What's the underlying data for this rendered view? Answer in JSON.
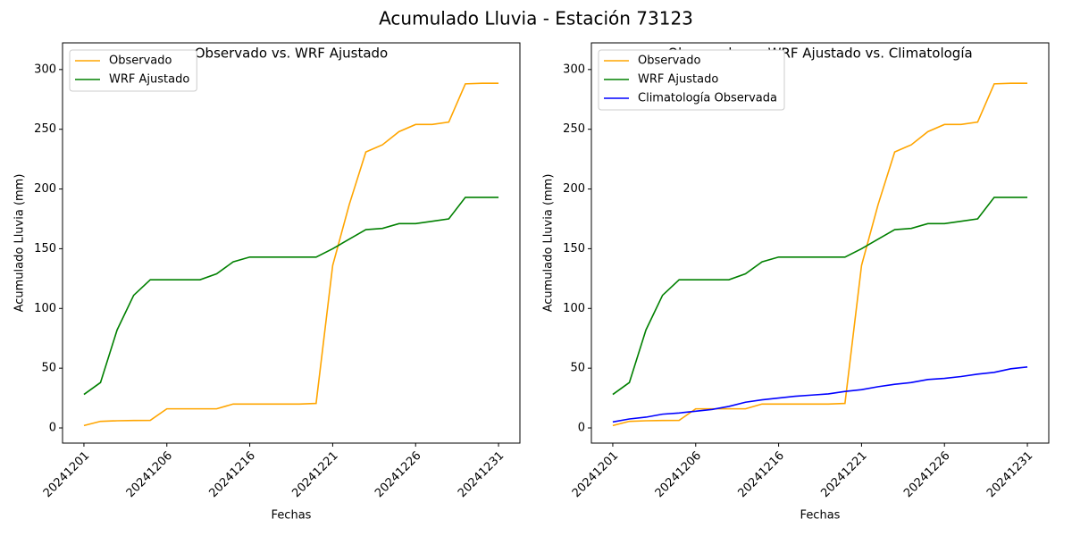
{
  "title": "Acumulado Lluvia - Estación 73123",
  "chart_data": [
    {
      "type": "line",
      "title": "Observado vs. WRF Ajustado",
      "x_label": "Fechas",
      "y_label": "Acumulado Lluvia (mm)",
      "categories": [
        "20241201",
        null,
        null,
        null,
        null,
        "20241206",
        null,
        null,
        null,
        null,
        "20241216",
        null,
        null,
        null,
        null,
        "20241221",
        null,
        null,
        null,
        null,
        "20241226",
        null,
        null,
        null,
        null,
        "20241231"
      ],
      "series": [
        {
          "name": "Observado",
          "color": "orange",
          "values": [
            2,
            5.5,
            6,
            6.2,
            6.3,
            16,
            16,
            16,
            16,
            20,
            20,
            20,
            20,
            20,
            20.5,
            136,
            187,
            231,
            237,
            248,
            254,
            254,
            256,
            288,
            288.5,
            288.5
          ]
        },
        {
          "name": "WRF Ajustado",
          "color": "green",
          "values": [
            28,
            38,
            82,
            111,
            124,
            124,
            124,
            124,
            129,
            139,
            143,
            143,
            143,
            143,
            143,
            150,
            158,
            166,
            167,
            171,
            171,
            173,
            175,
            193,
            193,
            193
          ]
        }
      ],
      "ylim": [
        -12.7,
        322.3
      ],
      "yticks": [
        0,
        50,
        100,
        150,
        200,
        250,
        300
      ],
      "legend": "upper left",
      "grid": false
    },
    {
      "type": "line",
      "title": "Observado vs. WRF Ajustado vs. Climatología",
      "x_label": "Fechas",
      "y_label": "Acumulado Lluvia (mm)",
      "categories": [
        "20241201",
        null,
        null,
        null,
        null,
        "20241206",
        null,
        null,
        null,
        null,
        "20241216",
        null,
        null,
        null,
        null,
        "20241221",
        null,
        null,
        null,
        null,
        "20241226",
        null,
        null,
        null,
        null,
        "20241231"
      ],
      "series": [
        {
          "name": "Observado",
          "color": "orange",
          "values": [
            2,
            5.5,
            6,
            6.2,
            6.3,
            16,
            16,
            16,
            16,
            20,
            20,
            20,
            20,
            20,
            20.5,
            136,
            187,
            231,
            237,
            248,
            254,
            254,
            256,
            288,
            288.5,
            288.5
          ]
        },
        {
          "name": "WRF Ajustado",
          "color": "green",
          "values": [
            28,
            38,
            82,
            111,
            124,
            124,
            124,
            124,
            129,
            139,
            143,
            143,
            143,
            143,
            143,
            150,
            158,
            166,
            167,
            171,
            171,
            173,
            175,
            193,
            193,
            193
          ]
        },
        {
          "name": "Climatología Observada",
          "color": "blue",
          "values": [
            5,
            7.5,
            9,
            11.5,
            12.5,
            14,
            15.5,
            18,
            21.5,
            23.5,
            25,
            26.5,
            27.5,
            28.5,
            30.5,
            32,
            34.5,
            36.5,
            38,
            40.5,
            41.5,
            43,
            45,
            46.5,
            49.5,
            51
          ]
        }
      ],
      "ylim": [
        -12.7,
        322.3
      ],
      "yticks": [
        0,
        50,
        100,
        150,
        200,
        250,
        300
      ],
      "legend": "upper left",
      "grid": false
    }
  ]
}
